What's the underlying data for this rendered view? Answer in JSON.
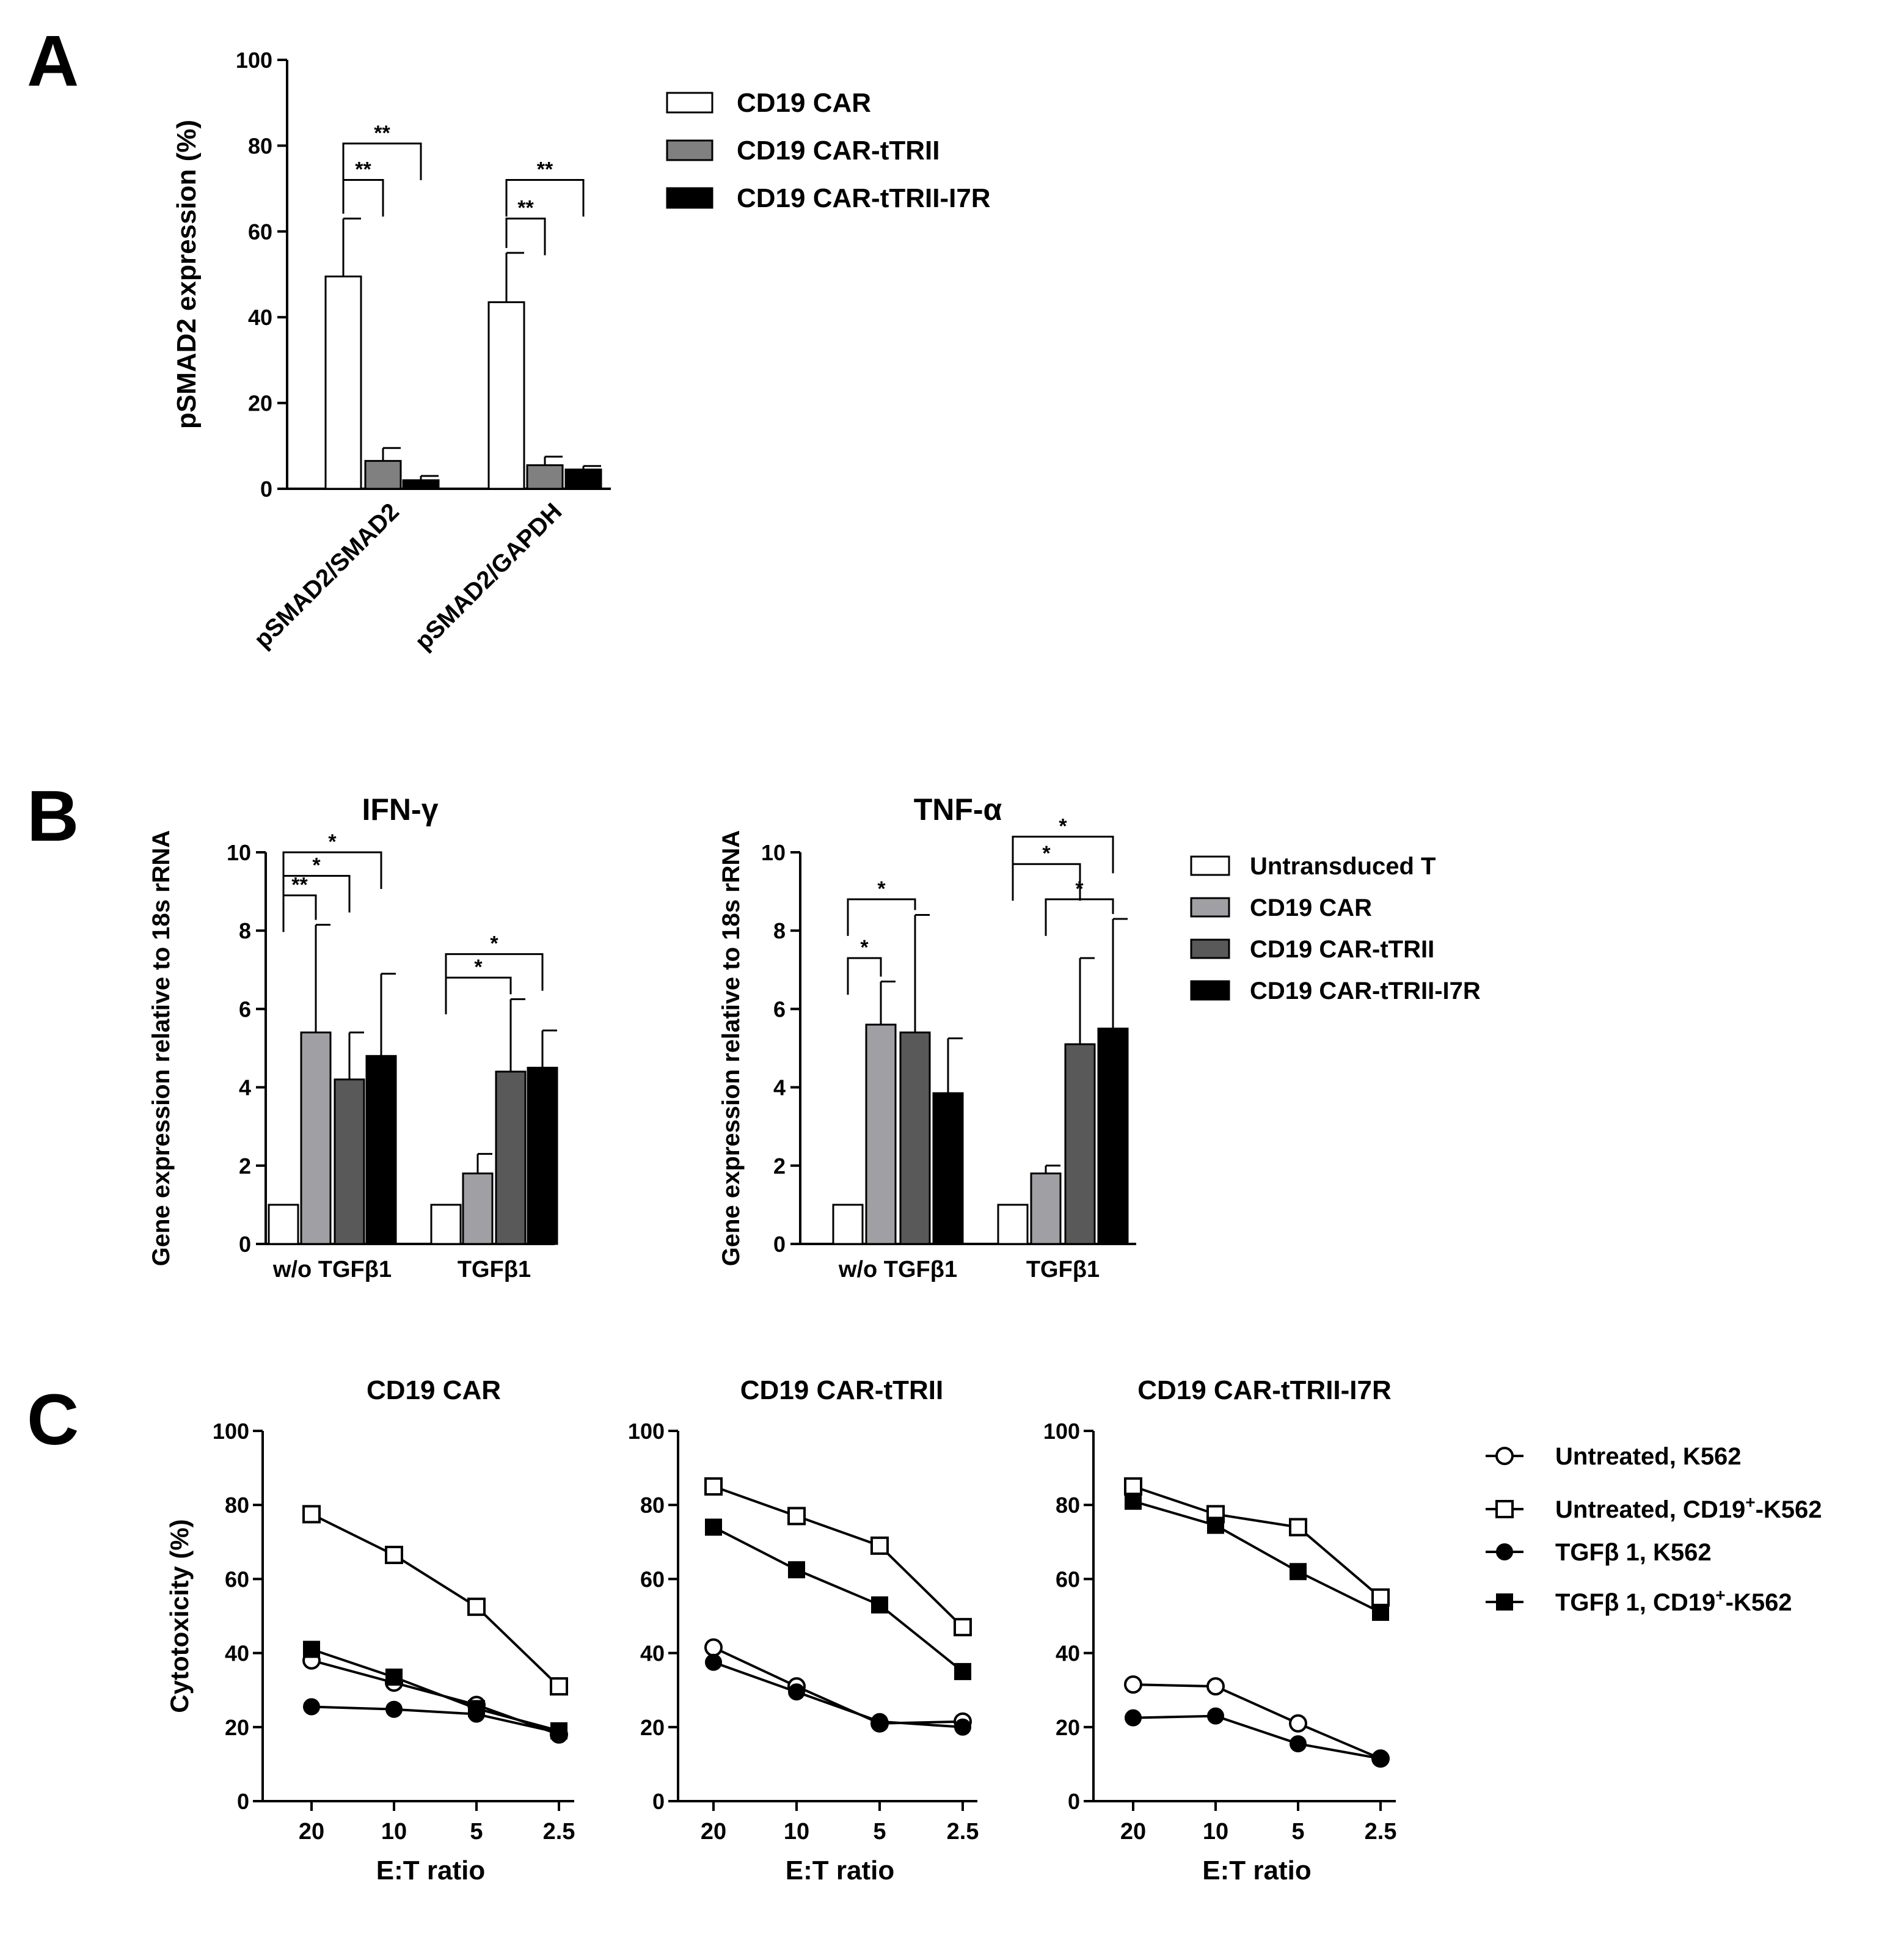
{
  "panels": {
    "a": "A",
    "b": "B",
    "c": "C"
  },
  "chart_data": [
    {
      "id": "A",
      "type": "bar",
      "title": "",
      "xlabel": "",
      "ylabel": "pSMAD2 expression (%)",
      "ylim": [
        0,
        100
      ],
      "yticks": [
        "0",
        "20",
        "40",
        "60",
        "80",
        "100"
      ],
      "categories": [
        "pSMAD2/SMAD2",
        "pSMAD2/GAPDH"
      ],
      "series": [
        {
          "name": "CD19 CAR",
          "color": "#ffffff",
          "values": [
            49.5,
            43.5
          ],
          "errors": [
            13.5,
            11.5
          ]
        },
        {
          "name": "CD19 CAR-tTRII",
          "color": "#808080",
          "values": [
            6.5,
            5.5
          ],
          "errors": [
            3.0,
            2.0
          ]
        },
        {
          "name": "CD19 CAR-tTRII-I7R",
          "color": "#000000",
          "values": [
            2.0,
            4.5
          ],
          "errors": [
            1.0,
            0.8
          ]
        }
      ],
      "significance": [
        {
          "category": 0,
          "from": 0,
          "to": 1,
          "label": "**",
          "y": 72
        },
        {
          "category": 0,
          "from": 0,
          "to": 2,
          "label": "**",
          "y": 80.5
        },
        {
          "category": 1,
          "from": 0,
          "to": 1,
          "label": "**",
          "y": 63
        },
        {
          "category": 1,
          "from": 0,
          "to": 2,
          "label": "**",
          "y": 72
        }
      ],
      "legend": "right"
    },
    {
      "id": "B1",
      "type": "bar",
      "title": "IFN-γ",
      "xlabel": "",
      "ylabel": "Gene expression relative to 18s rRNA",
      "ylim": [
        0,
        10
      ],
      "yticks": [
        "0",
        "2",
        "4",
        "6",
        "8",
        "10"
      ],
      "categories": [
        "w/o TGFβ1",
        "TGFβ1"
      ],
      "series": [
        {
          "name": "Untransduced T",
          "color": "#ffffff",
          "values": [
            1.0,
            1.0
          ],
          "errors": [
            0,
            0
          ]
        },
        {
          "name": "CD19 CAR",
          "color": "#a0a0a4",
          "values": [
            5.4,
            1.8
          ],
          "errors": [
            2.75,
            0.5
          ]
        },
        {
          "name": "CD19 CAR-tTRII",
          "color": "#595959",
          "values": [
            4.2,
            4.4
          ],
          "errors": [
            1.2,
            1.85
          ]
        },
        {
          "name": "CD19 CAR-tTRII-I7R",
          "color": "#000000",
          "values": [
            4.8,
            4.5
          ],
          "errors": [
            2.1,
            0.95
          ]
        }
      ],
      "significance": [
        {
          "category": 0,
          "from": 0,
          "to": 1,
          "label": "**",
          "y": 8.9
        },
        {
          "category": 0,
          "from": 0,
          "to": 2,
          "label": "*",
          "y": 9.4
        },
        {
          "category": 0,
          "from": 0,
          "to": 3,
          "label": "*",
          "y": 10.0
        },
        {
          "category": 1,
          "from": 0,
          "to": 2,
          "label": "*",
          "y": 6.8
        },
        {
          "category": 1,
          "from": 0,
          "to": 3,
          "label": "*",
          "y": 7.4
        }
      ],
      "legend": "none"
    },
    {
      "id": "B2",
      "type": "bar",
      "title": "TNF-α",
      "xlabel": "",
      "ylabel": "Gene expression relative to 18s rRNA",
      "ylim": [
        0,
        10
      ],
      "yticks": [
        "0",
        "2",
        "4",
        "6",
        "8",
        "10"
      ],
      "categories": [
        "w/o TGFβ1",
        "TGFβ1"
      ],
      "series": [
        {
          "name": "Untransduced T",
          "color": "#ffffff",
          "values": [
            1.0,
            1.0
          ],
          "errors": [
            0,
            0
          ]
        },
        {
          "name": "CD19 CAR",
          "color": "#a0a0a4",
          "values": [
            5.6,
            1.8
          ],
          "errors": [
            1.1,
            0.2
          ]
        },
        {
          "name": "CD19 CAR-tTRII",
          "color": "#595959",
          "values": [
            5.4,
            5.1
          ],
          "errors": [
            3.0,
            2.2
          ]
        },
        {
          "name": "CD19 CAR-tTRII-I7R",
          "color": "#000000",
          "values": [
            3.85,
            5.5
          ],
          "errors": [
            1.4,
            2.8
          ]
        }
      ],
      "significance": [
        {
          "category": 0,
          "from": 0,
          "to": 1,
          "label": "*",
          "y": 7.3
        },
        {
          "category": 0,
          "from": 0,
          "to": 2,
          "label": "*",
          "y": 8.8
        },
        {
          "category": 1,
          "from": 0,
          "to": 2,
          "label": "*",
          "y": 9.7
        },
        {
          "category": 1,
          "from": 0,
          "to": 3,
          "label": "*",
          "y": 10.4
        },
        {
          "category": 1,
          "from": 1,
          "to": 3,
          "label": "*",
          "y": 8.8
        }
      ],
      "legend": "right"
    },
    {
      "id": "C1",
      "type": "line",
      "title": "CD19 CAR",
      "xlabel": "E:T ratio",
      "ylabel": "Cytotoxicity (%)",
      "ylim": [
        0,
        100
      ],
      "yticks": [
        "0",
        "20",
        "40",
        "60",
        "80",
        "100"
      ],
      "x": [
        "20",
        "10",
        "5",
        "2.5"
      ],
      "series": [
        {
          "name": "Untreated, K562",
          "marker": "open-circle",
          "values": [
            38,
            32,
            26,
            18
          ]
        },
        {
          "name": "Untreated, CD19+-K562",
          "marker": "open-square",
          "values": [
            77.5,
            66.5,
            52.5,
            31
          ]
        },
        {
          "name": "TGFβ 1, K562",
          "marker": "filled-circle",
          "values": [
            25.5,
            24.8,
            23.5,
            18.5
          ]
        },
        {
          "name": "TGFβ 1, CD19+-K562",
          "marker": "filled-square",
          "values": [
            41,
            33.5,
            25,
            19
          ]
        }
      ],
      "legend": "none"
    },
    {
      "id": "C2",
      "type": "line",
      "title": "CD19 CAR-tTRII",
      "xlabel": "E:T ratio",
      "ylabel": "",
      "ylim": [
        0,
        100
      ],
      "yticks": [
        "0",
        "20",
        "40",
        "60",
        "80",
        "100"
      ],
      "x": [
        "20",
        "10",
        "5",
        "2.5"
      ],
      "series": [
        {
          "name": "Untreated, K562",
          "marker": "open-circle",
          "values": [
            41.5,
            31,
            21,
            21.5
          ]
        },
        {
          "name": "Untreated, CD19+-K562",
          "marker": "open-square",
          "values": [
            85,
            77,
            69,
            47
          ]
        },
        {
          "name": "TGFβ 1, K562",
          "marker": "filled-circle",
          "values": [
            37.5,
            29.5,
            21.5,
            20
          ]
        },
        {
          "name": "TGFβ 1, CD19+-K562",
          "marker": "filled-square",
          "values": [
            74,
            62.5,
            53,
            35
          ]
        }
      ],
      "legend": "none"
    },
    {
      "id": "C3",
      "type": "line",
      "title": "CD19 CAR-tTRII-I7R",
      "xlabel": "E:T ratio",
      "ylabel": "",
      "ylim": [
        0,
        100
      ],
      "yticks": [
        "0",
        "20",
        "40",
        "60",
        "80",
        "100"
      ],
      "x": [
        "20",
        "10",
        "5",
        "2.5"
      ],
      "series": [
        {
          "name": "Untreated, K562",
          "marker": "open-circle",
          "values": [
            31.5,
            31,
            21,
            11.5
          ]
        },
        {
          "name": "Untreated, CD19+-K562",
          "marker": "open-square",
          "values": [
            85,
            77.5,
            74,
            55
          ]
        },
        {
          "name": "TGFβ 1, K562",
          "marker": "filled-circle",
          "values": [
            22.5,
            23,
            15.5,
            11.5
          ]
        },
        {
          "name": "TGFβ 1, CD19+-K562",
          "marker": "filled-square",
          "values": [
            81,
            74.5,
            62,
            51
          ]
        }
      ],
      "legend": "right"
    }
  ],
  "legends": {
    "a": [
      "CD19 CAR",
      "CD19 CAR-tTRII",
      "CD19 CAR-tTRII-I7R"
    ],
    "b": [
      "Untransduced T",
      "CD19 CAR",
      "CD19 CAR-tTRII",
      "CD19 CAR-tTRII-I7R"
    ],
    "c": [
      {
        "pre": "Untreated, K562",
        "sup": "",
        "post": ""
      },
      {
        "pre": "Untreated, CD19",
        "sup": "+",
        "post": "-K562"
      },
      {
        "pre": "TGFβ 1, K562",
        "sup": "",
        "post": ""
      },
      {
        "pre": "TGFβ 1, CD19",
        "sup": "+",
        "post": "-K562"
      }
    ]
  }
}
